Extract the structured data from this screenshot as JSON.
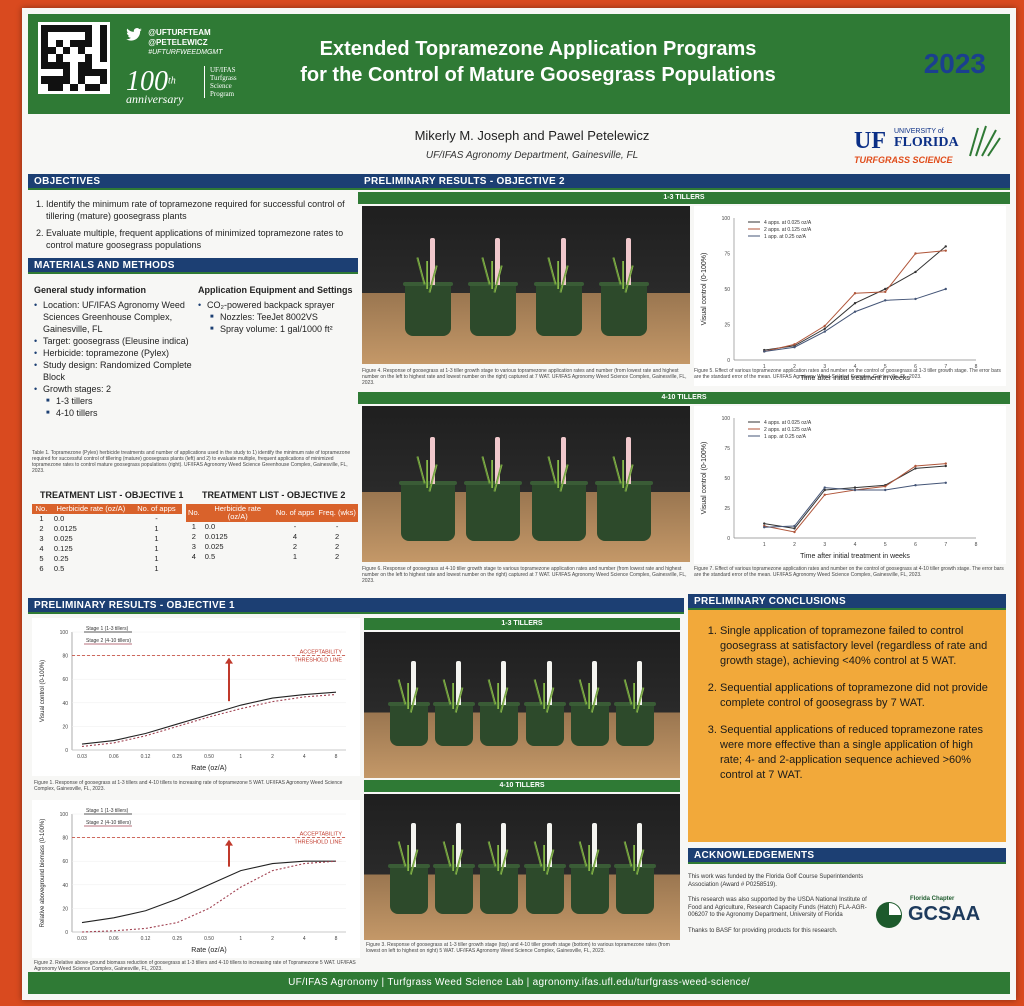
{
  "header": {
    "social": [
      "@UFTURFTEAM",
      "@PETELEWICZ",
      "#UFTURFWEEDMGMT"
    ],
    "anniversary_number": "100",
    "anniversary_suffix": "th",
    "anniversary_word": "anniversary",
    "program": [
      "UF/IFAS",
      "Turfgrass",
      "Science",
      "Program"
    ],
    "title_line1": "Extended Topramezone Application Programs",
    "title_line2": "for the Control of Mature Goosegrass Populations",
    "year": "2023"
  },
  "authors": "Mikerly M. Joseph and Pawel Petelewicz",
  "affiliation": "UF/IFAS Agronomy Department, Gainesville, FL",
  "logo": {
    "uf": "UF",
    "university_of": "UNIVERSITY of",
    "florida": "FLORIDA",
    "turf": "TURFGRASS SCIENCE"
  },
  "objectives": {
    "heading": "OBJECTIVES",
    "items": [
      "Identify the minimum rate of topramezone required for successful control of tillering (mature) goosegrass plants",
      "Evaluate multiple, frequent applications of minimized topramezone rates to control mature goosegrass populations"
    ]
  },
  "methods": {
    "heading": "MATERIALS AND METHODS",
    "general_heading": "General study information",
    "general_items": [
      "Location: UF/IFAS Agronomy Weed Sciences Greenhouse Complex, Gainesville, FL",
      "Target: goosegrass (Eleusine indica)",
      "Herbicide: topramezone (Pylex)",
      "Study design: Randomized Complete Block",
      "Growth stages: 2"
    ],
    "stages": [
      "1-3 tillers",
      "4-10 tillers"
    ],
    "equipment_heading": "Application Equipment and Settings",
    "equipment_items": [
      "CO₂-powered backpack sprayer"
    ],
    "equipment_sub": [
      "Nozzles: TeeJet 8002VS",
      "Spray volume: 1 gal/1000 ft²"
    ]
  },
  "table_caption": "Table 1. Topramezone (Pylex) herbicide treatments and number of applications used in the study to 1) identify the minimum rate of topramezone required for successful control of tillering (mature) goosegrass plants (left) and 2) to evaluate multiple, frequent applications of minimized topramezone rates to control mature goosegrass populations (right). UF/IFAS Agronomy Weed Science Greenhouse Complex, Gainesville, FL, 2023.",
  "treatment1": {
    "title": "TREATMENT LIST - OBJECTIVE 1",
    "headers": [
      "No.",
      "Herbicide rate (oz/A)",
      "No. of apps"
    ],
    "rows": [
      [
        "1",
        "0.0",
        "-"
      ],
      [
        "2",
        "0.0125",
        "1"
      ],
      [
        "3",
        "0.025",
        "1"
      ],
      [
        "4",
        "0.125",
        "1"
      ],
      [
        "5",
        "0.25",
        "1"
      ],
      [
        "6",
        "0.5",
        "1"
      ]
    ]
  },
  "treatment2": {
    "title": "TREATMENT LIST - OBJECTIVE 2",
    "headers": [
      "No.",
      "Herbicide rate (oz/A)",
      "No. of apps",
      "Freq. (wks)"
    ],
    "rows": [
      [
        "1",
        "0.0",
        "-",
        "-"
      ],
      [
        "2",
        "0.0125",
        "4",
        "2"
      ],
      [
        "3",
        "0.025",
        "2",
        "2"
      ],
      [
        "4",
        "0.5",
        "1",
        "2"
      ]
    ]
  },
  "results2": {
    "heading": "PRELIMINARY RESULTS - OBJECTIVE 2",
    "sub1": "1-3 TILLERS",
    "sub2": "4-10 TILLERS",
    "fig4": "Figure 4. Response of goosegrass at 1-3 tiller growth stage to various topramezone application rates and number (from lowest rate and highest number on the left to highest rate and lowest number on the right) captured at 7 WAT. UF/IFAS Agronomy Weed Science Complex, Gainesville, FL, 2023.",
    "fig5": "Figure 5. Effect of various topramezone application rates and number on the control of goosegrass at 1-3 tiller growth stage. The error bars are the standard error of the mean. UF/IFAS Agronomy Weed Science Complex, Gainesville, FL, 2023.",
    "fig6": "Figure 6. Response of goosegrass at 4-10 tiller growth stage to various topramezone application rates and number (from lowest rate and highest number on the left to highest rate and lowest number on the right) captured at 7 WAT. UF/IFAS Agronomy Weed Science Complex, Gainesville, FL, 2023.",
    "fig7": "Figure 7. Effect of various topramezone application rates and number on the control of goosegrass at 4-10 tiller growth stage. The error bars are the standard error of the mean. UF/IFAS Agronomy Weed Science Complex, Gainesville, FL, 2023."
  },
  "results1": {
    "heading": "PRELIMINARY RESULTS - OBJECTIVE 1",
    "sub1": "1-3 TILLERS",
    "sub2": "4-10 TILLERS",
    "fig1": "Figure 1. Response of goosegrass at 1-3 tillers and 4-10 tillers to increasing rate of topramezone 5 WAT. UF/IFAS Agronomy Weed Science Complex, Gainesville, FL, 2023.",
    "fig2": "Figure 2. Relative above-ground biomass reduction of goosegrass at 1-3 tillers and 4-10 tillers to increasing rate of Topramezone 5 WAT. UF/IFAS Agronomy Weed Science Complex, Gainesville, FL, 2023.",
    "fig3": "Figure 3. Response of goosegrass at 1-3 tiller growth stage (top) and 4-10 tiller growth stage (bottom) to various topramezone rates (from lowest on left to highest on right) 5 WAT. UF/IFAS Agronomy Weed Science Complex, Gainesville, FL, 2023."
  },
  "conclusions": {
    "heading": "PRELIMINARY CONCLUSIONS",
    "items": [
      "Single application of topramezone failed to control goosegrass at satisfactory level (regardless of rate and growth stage), achieving <40% control at 5 WAT.",
      "Sequential applications of topramezone did not provide complete control of goosegrass by 7 WAT.",
      "Sequential applications of reduced topramezone rates were more effective than a single application of high rate; 4- and 2-application sequence achieved >60% control at 7 WAT."
    ]
  },
  "acknowledgements": {
    "heading": "ACKNOWLEDGEMENTS",
    "paras": [
      "This work was funded by the Florida Golf Course Superintendents Association (Award # P0258519).",
      "This research was also supported by the USDA National Institute of Food and Agriculture, Research Capacity Funds (Hatch) FLA-AGR-006207 to the Agronomy Department, University of Florida",
      "Thanks to BASF for providing products for this research."
    ],
    "gcsaa_chapter": "Florida Chapter",
    "gcsaa": "GCSAA"
  },
  "footer": "UF/IFAS Agronomy | Turfgrass Weed Science Lab | agronomy.ifas.ufl.edu/turfgrass-weed-science/",
  "chart_data": [
    {
      "type": "line",
      "xlabel": "Time after initial treatment in weeks",
      "ylabel": "Visual control (0-100%)",
      "x": [
        1,
        2,
        3,
        4,
        5,
        6,
        7
      ],
      "xlim": [
        0,
        8
      ],
      "ylim": [
        0,
        100
      ],
      "yticks": [
        0,
        25,
        50,
        75,
        100
      ],
      "series": [
        {
          "name": "4 apps. at 0.025 oz/A",
          "color": "#333333",
          "values": [
            7,
            10,
            22,
            40,
            50,
            62,
            80
          ]
        },
        {
          "name": "2 apps. at 0.125 oz/A",
          "color": "#b0563a",
          "values": [
            6,
            11,
            24,
            47,
            48,
            75,
            77
          ]
        },
        {
          "name": "1 app. at 0.25 oz/A",
          "color": "#445577",
          "values": [
            6,
            9,
            20,
            34,
            42,
            43,
            50
          ]
        }
      ]
    },
    {
      "type": "line",
      "xlabel": "Time after initial treatment in weeks",
      "ylabel": "Visual control (0-100%)",
      "x": [
        1,
        2,
        3,
        4,
        5,
        6,
        7
      ],
      "xlim": [
        0,
        8
      ],
      "ylim": [
        0,
        100
      ],
      "yticks": [
        0,
        25,
        50,
        75,
        100
      ],
      "series": [
        {
          "name": "4 apps. at 0.025 oz/A",
          "color": "#333333",
          "values": [
            12,
            8,
            40,
            42,
            44,
            58,
            60
          ]
        },
        {
          "name": "2 apps. at 0.125 oz/A",
          "color": "#b0563a",
          "values": [
            10,
            5,
            36,
            40,
            43,
            60,
            62
          ]
        },
        {
          "name": "1 app. at 0.25 oz/A",
          "color": "#445577",
          "values": [
            9,
            10,
            42,
            40,
            40,
            44,
            46
          ]
        }
      ]
    },
    {
      "type": "line",
      "xlabel": "Rate (oz/A)",
      "ylabel": "Visual control (0-100%)",
      "xticks": [
        "0.03",
        "0.06",
        "0.12",
        "0.25",
        "0.50",
        "1",
        "2",
        "4",
        "8"
      ],
      "ylim": [
        0,
        100
      ],
      "yticks": [
        0,
        20,
        40,
        60,
        80,
        100
      ],
      "threshold": 80,
      "threshold_label": [
        "ACCEPTABILITY",
        "THRESHOLD LINE"
      ],
      "series": [
        {
          "name": "Stage 1 (1-3 tillers)",
          "values": [
            5,
            8,
            14,
            22,
            30,
            38,
            44,
            47,
            49
          ]
        },
        {
          "name": "Stage 2 (4-10 tillers)",
          "values": [
            3,
            6,
            12,
            20,
            28,
            35,
            41,
            45,
            47
          ]
        }
      ]
    },
    {
      "type": "line",
      "xlabel": "Rate (oz/A)",
      "ylabel": "Relative aboveground biomass (0-100%)",
      "xticks": [
        "0.03",
        "0.06",
        "0.12",
        "0.25",
        "0.50",
        "1",
        "2",
        "4",
        "8"
      ],
      "ylim": [
        0,
        100
      ],
      "yticks": [
        0,
        20,
        40,
        60,
        80,
        100
      ],
      "threshold": 80,
      "threshold_label": [
        "ACCEPTABILITY",
        "THRESHOLD LINE"
      ],
      "series": [
        {
          "name": "Stage 1 (1-3 tillers)",
          "values": [
            8,
            12,
            18,
            28,
            40,
            52,
            58,
            60,
            60
          ]
        },
        {
          "name": "Stage 2 (4-10 tillers)",
          "values": [
            0,
            1,
            3,
            8,
            20,
            38,
            52,
            58,
            60
          ]
        }
      ]
    }
  ]
}
